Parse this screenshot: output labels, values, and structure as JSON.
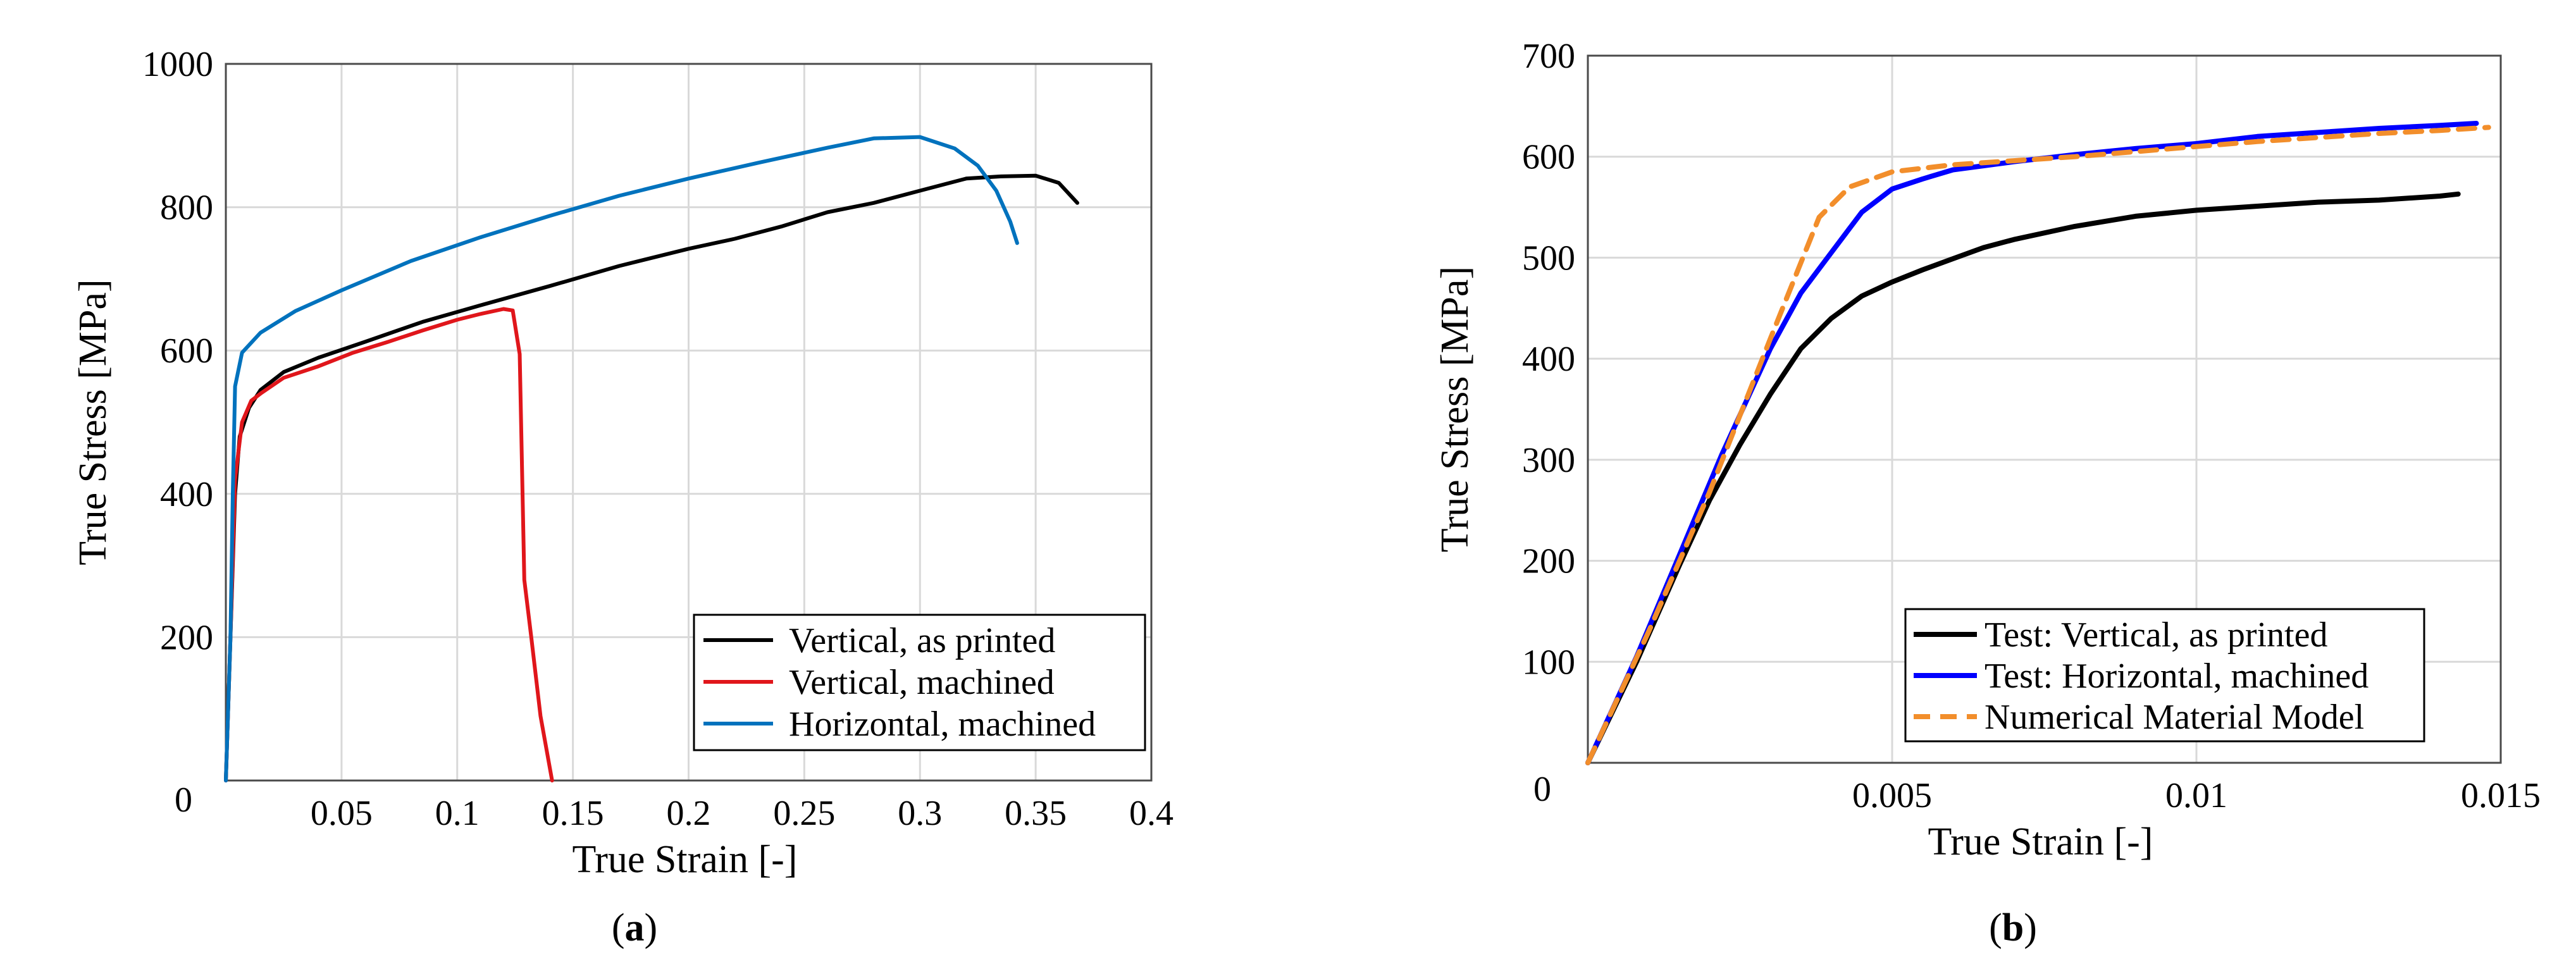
{
  "chart_data": [
    {
      "type": "line",
      "panel_label": "a",
      "xlabel": "True Strain [-]",
      "ylabel": "True Stress [MPa]",
      "xlim": [
        0,
        0.4
      ],
      "ylim": [
        0,
        1000
      ],
      "xticks": [
        0,
        0.05,
        0.1,
        0.15,
        0.2,
        0.25,
        0.3,
        0.35,
        0.4
      ],
      "xtick_labels": [
        "0",
        "0.05",
        "0.1",
        "0.15",
        "0.2",
        "0.25",
        "0.3",
        "0.35",
        "0.4"
      ],
      "yticks": [
        200,
        400,
        600,
        800,
        1000
      ],
      "ytick_labels": [
        "200",
        "400",
        "600",
        "800",
        "1000"
      ],
      "grid": true,
      "legend_position": "bottom-right",
      "series": [
        {
          "name": "Vertical, as printed",
          "color": "#000000",
          "dash": "solid",
          "points": [
            [
              0,
              0
            ],
            [
              0.002,
              200
            ],
            [
              0.004,
              400
            ],
            [
              0.006,
              480
            ],
            [
              0.01,
              520
            ],
            [
              0.015,
              545
            ],
            [
              0.025,
              570
            ],
            [
              0.04,
              590
            ],
            [
              0.06,
              612
            ],
            [
              0.085,
              640
            ],
            [
              0.11,
              663
            ],
            [
              0.14,
              690
            ],
            [
              0.17,
              718
            ],
            [
              0.2,
              742
            ],
            [
              0.22,
              756
            ],
            [
              0.24,
              773
            ],
            [
              0.26,
              793
            ],
            [
              0.28,
              806
            ],
            [
              0.3,
              823
            ],
            [
              0.32,
              840
            ],
            [
              0.335,
              843
            ],
            [
              0.35,
              844
            ],
            [
              0.36,
              834
            ],
            [
              0.368,
              806
            ]
          ]
        },
        {
          "name": "Vertical, machined",
          "color": "#e0161b",
          "dash": "solid",
          "points": [
            [
              0,
              0
            ],
            [
              0.002,
              200
            ],
            [
              0.004,
              420
            ],
            [
              0.007,
              500
            ],
            [
              0.011,
              530
            ],
            [
              0.015,
              540
            ],
            [
              0.025,
              562
            ],
            [
              0.04,
              578
            ],
            [
              0.055,
              597
            ],
            [
              0.07,
              612
            ],
            [
              0.085,
              628
            ],
            [
              0.1,
              643
            ],
            [
              0.11,
              651
            ],
            [
              0.12,
              658
            ],
            [
              0.124,
              656
            ],
            [
              0.127,
              595
            ],
            [
              0.129,
              280
            ],
            [
              0.132,
              200
            ],
            [
              0.136,
              90
            ],
            [
              0.141,
              0
            ]
          ]
        },
        {
          "name": "Horizontal, machined",
          "color": "#0072bd",
          "dash": "solid",
          "points": [
            [
              0,
              0
            ],
            [
              0.002,
              200
            ],
            [
              0.003,
              400
            ],
            [
              0.004,
              550
            ],
            [
              0.007,
              597
            ],
            [
              0.015,
              625
            ],
            [
              0.03,
              655
            ],
            [
              0.05,
              684
            ],
            [
              0.08,
              725
            ],
            [
              0.11,
              758
            ],
            [
              0.14,
              788
            ],
            [
              0.17,
              816
            ],
            [
              0.2,
              840
            ],
            [
              0.23,
              862
            ],
            [
              0.26,
              883
            ],
            [
              0.28,
              896
            ],
            [
              0.3,
              898
            ],
            [
              0.315,
              882
            ],
            [
              0.325,
              858
            ],
            [
              0.333,
              823
            ],
            [
              0.339,
              780
            ],
            [
              0.342,
              750
            ]
          ]
        }
      ]
    },
    {
      "type": "line",
      "panel_label": "b",
      "xlabel": "True Strain [-]",
      "ylabel": "True Stress [MPa]",
      "xlim": [
        0,
        0.015
      ],
      "ylim": [
        0,
        700
      ],
      "xticks": [
        0,
        0.005,
        0.01,
        0.015
      ],
      "xtick_labels": [
        "0",
        "0.005",
        "0.01",
        "0.015"
      ],
      "yticks": [
        100,
        200,
        300,
        400,
        500,
        600,
        700
      ],
      "ytick_labels": [
        "100",
        "200",
        "300",
        "400",
        "500",
        "600",
        "700"
      ],
      "grid": true,
      "legend_position": "bottom-right",
      "series": [
        {
          "name": "Test: Vertical, as printed",
          "color": "#000000",
          "dash": "solid",
          "points": [
            [
              0,
              0
            ],
            [
              0.0008,
              100
            ],
            [
              0.0015,
              195
            ],
            [
              0.002,
              260
            ],
            [
              0.0025,
              315
            ],
            [
              0.003,
              365
            ],
            [
              0.0035,
              410
            ],
            [
              0.004,
              440
            ],
            [
              0.0045,
              462
            ],
            [
              0.005,
              476
            ],
            [
              0.0055,
              488
            ],
            [
              0.006,
              499
            ],
            [
              0.0065,
              510
            ],
            [
              0.007,
              518
            ],
            [
              0.008,
              531
            ],
            [
              0.009,
              541
            ],
            [
              0.01,
              547
            ],
            [
              0.011,
              551
            ],
            [
              0.012,
              555
            ],
            [
              0.013,
              557
            ],
            [
              0.014,
              561
            ],
            [
              0.0143,
              563
            ]
          ]
        },
        {
          "name": "Test: Horizontal, machined",
          "color": "#0000ff",
          "dash": "solid",
          "points": [
            [
              0,
              0
            ],
            [
              0.0008,
              105
            ],
            [
              0.0015,
              205
            ],
            [
              0.0022,
              305
            ],
            [
              0.003,
              410
            ],
            [
              0.0035,
              465
            ],
            [
              0.004,
              505
            ],
            [
              0.0045,
              545
            ],
            [
              0.005,
              568
            ],
            [
              0.0055,
              578
            ],
            [
              0.006,
              587
            ],
            [
              0.007,
              595
            ],
            [
              0.008,
              602
            ],
            [
              0.009,
              608
            ],
            [
              0.01,
              613
            ],
            [
              0.011,
              620
            ],
            [
              0.012,
              624
            ],
            [
              0.013,
              628
            ],
            [
              0.014,
              631
            ],
            [
              0.0146,
              633
            ]
          ]
        },
        {
          "name": "Numerical Material Model",
          "color": "#f28e2b",
          "dash": "dashed",
          "points": [
            [
              0,
              0
            ],
            [
              0.001,
              130
            ],
            [
              0.002,
              268
            ],
            [
              0.003,
              420
            ],
            [
              0.0038,
              540
            ],
            [
              0.0043,
              570
            ],
            [
              0.005,
              585
            ],
            [
              0.006,
              592
            ],
            [
              0.007,
              596
            ],
            [
              0.008,
              600
            ],
            [
              0.009,
              605
            ],
            [
              0.01,
              610
            ],
            [
              0.011,
              615
            ],
            [
              0.012,
              619
            ],
            [
              0.013,
              623
            ],
            [
              0.014,
              626
            ],
            [
              0.0148,
              629
            ]
          ]
        }
      ]
    }
  ]
}
